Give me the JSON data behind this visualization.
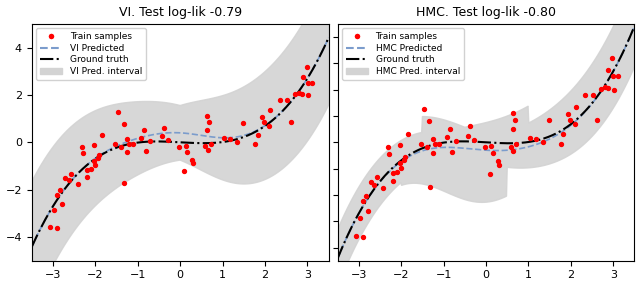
{
  "title_left": "VI. Test log-lik -0.79",
  "title_right": "HMC. Test log-lik -0.80",
  "xlim": [
    -3.5,
    3.5
  ],
  "ylim_left": [
    -5,
    5
  ],
  "ylim_right": [
    -4.5,
    4.5
  ],
  "x_ticks": [
    -3,
    -2,
    -1,
    0,
    1,
    2,
    3
  ],
  "background_color": "#ffffff",
  "fill_color": "#d3d3d3",
  "predicted_color": "#7b9ccc",
  "ground_truth_color": "#000000",
  "scatter_color": "#ff0000",
  "legend_labels_left": [
    "Train samples",
    "VI Predicted",
    "Ground truth",
    "VI Pred. interval"
  ],
  "legend_labels_right": [
    "Train samples",
    "HMC Predicted",
    "Ground truth",
    "HMC Pred. interval"
  ]
}
